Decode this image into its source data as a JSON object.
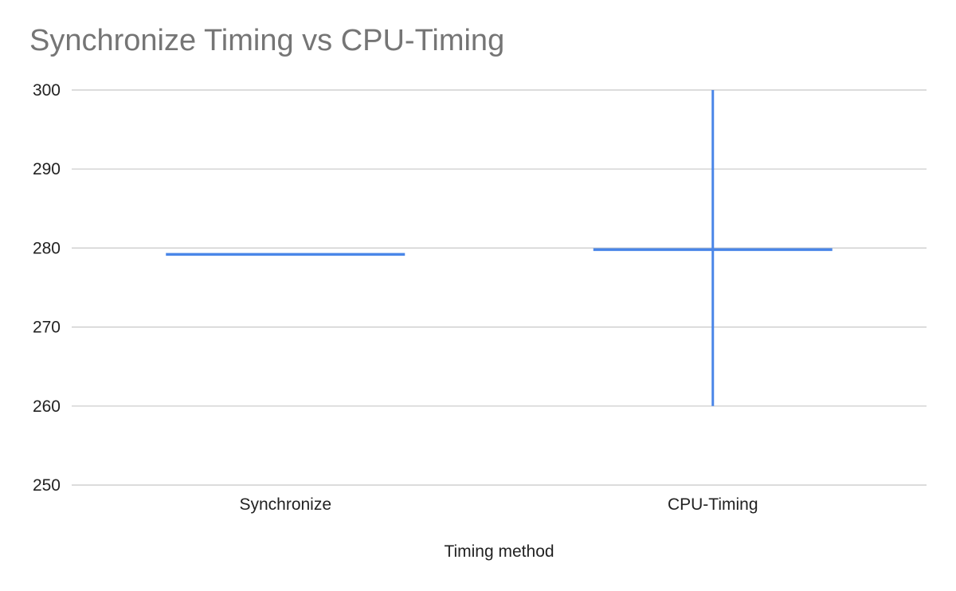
{
  "chart_data": {
    "type": "candlestick",
    "title": "Synchronize Timing vs CPU-Timing",
    "xlabel": "Timing method",
    "ylabel": "",
    "categories": [
      "Synchronize",
      "CPU-Timing"
    ],
    "series": [
      {
        "color": "#4a86e8",
        "points": [
          {
            "category": "Synchronize",
            "low": 279.2,
            "high": 279.2,
            "open": 279.2,
            "close": 279.2
          },
          {
            "category": "CPU-Timing",
            "low": 260,
            "high": 300,
            "open": 279.8,
            "close": 279.8
          }
        ]
      }
    ],
    "ylim": [
      250,
      300
    ],
    "yticks": [
      250,
      260,
      270,
      280,
      290,
      300
    ],
    "ytick_labels": [
      "250",
      "260",
      "270",
      "280",
      "290",
      "300"
    ],
    "grid": true,
    "legend": "none"
  }
}
